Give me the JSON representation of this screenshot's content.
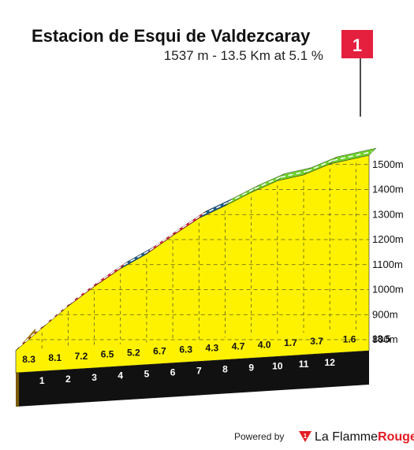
{
  "header": {
    "title": "Estacion de Esqui de Valdezcaray",
    "subtitle": "1537 m - 13.5 Km at 5.1 %"
  },
  "flag": {
    "number": "1"
  },
  "footer": {
    "powered_by": "Powered by",
    "brand_part1": "La Flamme",
    "brand_part2": "Rouge"
  },
  "colors": {
    "fill": "#fff200",
    "base_side": "#a57d12",
    "base_dark": "#111111",
    "easy": "#6fd02c",
    "medium": "#1d5b86",
    "hard": "#e5203f",
    "flag": "#e5203f"
  },
  "chart_data": {
    "type": "area",
    "title": "Estacion de Esqui de Valdezcaray",
    "subtitle": "1537 m - 13.5 Km at 5.1 %",
    "x_unit": "km",
    "y_unit": "m",
    "xlim": [
      0,
      13.5
    ],
    "ylim": [
      700,
      1550
    ],
    "y_ticks": [
      {
        "value": 800,
        "label": "800m"
      },
      {
        "value": 900,
        "label": "900m"
      },
      {
        "value": 1000,
        "label": "1000m"
      },
      {
        "value": 1100,
        "label": "1100m"
      },
      {
        "value": 1200,
        "label": "1200m"
      },
      {
        "value": 1300,
        "label": "1300m"
      },
      {
        "value": 1400,
        "label": "1400m"
      },
      {
        "value": 1500,
        "label": "1500m"
      }
    ],
    "km_markers": [
      "1",
      "2",
      "3",
      "4",
      "5",
      "6",
      "7",
      "8",
      "9",
      "10",
      "11",
      "12"
    ],
    "total_distance_label": "13.5",
    "profile": {
      "x": [
        0,
        1,
        2,
        3,
        4,
        5,
        6,
        7,
        8,
        9,
        10,
        11,
        12,
        13.5
      ],
      "y": [
        845,
        928,
        1009,
        1081,
        1146,
        1198,
        1265,
        1328,
        1371,
        1418,
        1458,
        1475,
        1512,
        1537
      ]
    },
    "segments": [
      {
        "km": "0-1",
        "gradient": 8.3,
        "label": "8.3",
        "color": "hard"
      },
      {
        "km": "1-2",
        "gradient": 8.1,
        "label": "8.1",
        "color": "hard"
      },
      {
        "km": "2-3",
        "gradient": 7.2,
        "label": "7.2",
        "color": "hard"
      },
      {
        "km": "3-4",
        "gradient": 6.5,
        "label": "6.5",
        "color": "hard"
      },
      {
        "km": "4-5",
        "gradient": 5.2,
        "label": "5.2",
        "color": "medium"
      },
      {
        "km": "5-6",
        "gradient": 6.7,
        "label": "6.7",
        "color": "hard"
      },
      {
        "km": "6-7",
        "gradient": 6.3,
        "label": "6.3",
        "color": "hard"
      },
      {
        "km": "7-8",
        "gradient": 4.3,
        "label": "4.3",
        "color": "medium"
      },
      {
        "km": "8-9",
        "gradient": 4.7,
        "label": "4.7",
        "color": "easy"
      },
      {
        "km": "9-10",
        "gradient": 4.0,
        "label": "4.0",
        "color": "easy"
      },
      {
        "km": "10-11",
        "gradient": 1.7,
        "label": "1.7",
        "color": "easy"
      },
      {
        "km": "11-12",
        "gradient": 3.7,
        "label": "3.7",
        "color": "easy"
      },
      {
        "km": "12-13.5",
        "gradient": 1.6,
        "label": "1.6",
        "color": "easy"
      }
    ],
    "grid": true,
    "legend": "none"
  }
}
